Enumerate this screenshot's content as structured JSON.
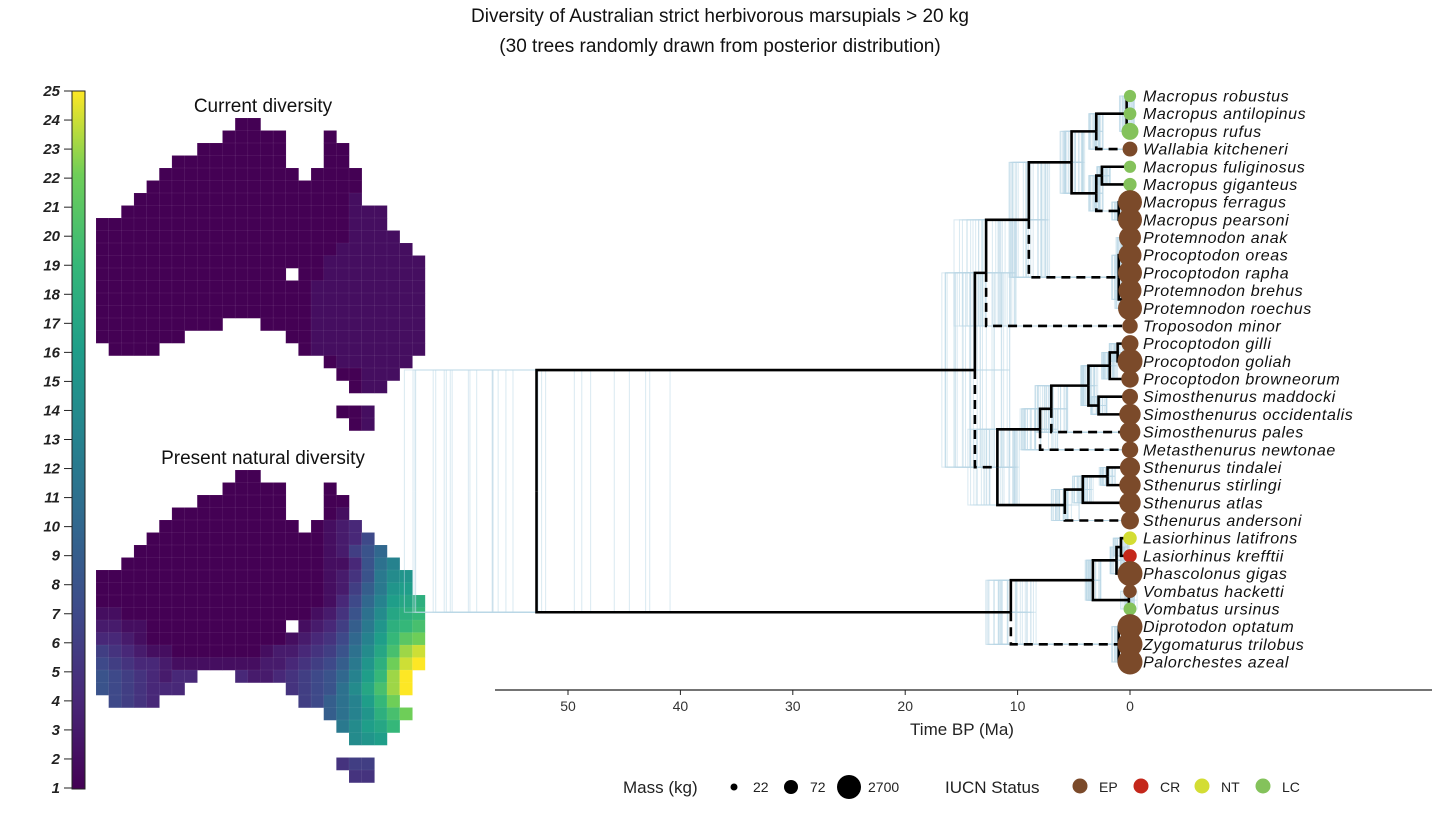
{
  "title": {
    "line1": "Diversity of Australian strict herbivorous marsupials > 20 kg",
    "line2": "(30 trees randomly drawn from posterior distribution)"
  },
  "chart_data": [
    {
      "type": "heatmap",
      "title": "Current diversity",
      "encoding": "each row string = grid row (north to south); '.' = no data; a=1 ... y=25",
      "grid": [
        "...........aa",
        "..........aaaaa...a",
        "........aaaaaaa...aa",
        "......aaaaaaaaa...aa",
        ".....aaaaaaaaaaa.aaaa",
        "....aaaaaaaaaaaaaaaaa",
        "...aaaaaaaaaaaaaaaaab",
        "..aaaaaaaaaaaaaaaaaabbb",
        "aaaaaaaaaaaaaaaaaaaabbb",
        "aaaaaaaaaaaaaaaaaaaabbbb",
        "aaaaaaaaaaaaaaaaaaabbbbbb",
        "aaaaaaaaaaaaaaaaaabbbbbbbb",
        "aaaaaaaaaaaaaaa.aabbbbbbbb",
        "aaaaaaaaaaaaaaaaabbbbbbbbb",
        "aaaaaaaaaaaaaaaaabbbbbbbbb",
        "aaaaaaaaaaaaaaaaabbbbbbbbb",
        "aaaaaaaaaa...aaaabbbbbbbbb",
        "aaaaaaa........aabbbbbbbbb",
        ".aaaa...........abbbbbbbbb",
        "..................abbbbbb",
        "...................aabbb",
        "....................abb",
        "",
        "...................aab",
        "....................ab"
      ]
    },
    {
      "type": "heatmap",
      "title": "Present natural diversity",
      "encoding": "each row string = grid row (north to south); '.' = no data; a=1 ... y=25",
      "grid": [
        "...........aa",
        "..........aaaaa...a",
        "........aaaaaaa...aa",
        "......aaaaaaaaa...ab",
        ".....aaaaaaaaaaa.abcd",
        "....aaaaaaaaaaaaaabcdg",
        "...aaaaaaaaaaaaaaabcfhj",
        "..aaaaaaaaaaaaaaaabbdhkm",
        "aaaaaaaaaaaaaaaaaabcehlno",
        "aaaaaaaaaaaaaaaaaabcfilop",
        "aaaaaaaaaaaaaaaaaabdgjmpqr",
        "bbaaaaaaaaaaaaaaabcehknqrs",
        "ccbbaaaaaaaaaaa.bcdfilorst",
        "ddcbaaaaaaaaaaabcdegjmpsuv",
        "fedcbbaaaaaaabccdefhknqtwx",
        "gfeddcbbbbbbbccdefgilorvxy",
        "hgfedcdd...dccdefghjmpswy",
        "hgfeddd........efghknqtwy",
        ".gfed...........fgikmpsv",
        "..................ikmortv",
        "...................lnpqs",
        "....................nop",
        "",
        "...................eff",
        "....................ee"
      ]
    },
    {
      "type": "phylogeny",
      "colorbar": {
        "min": 1,
        "max": 25,
        "ticks": [
          "1",
          "2",
          "3",
          "4",
          "5",
          "6",
          "7",
          "8",
          "9",
          "10",
          "11",
          "12",
          "13",
          "14",
          "15",
          "16",
          "17",
          "18",
          "19",
          "20",
          "21",
          "22",
          "23",
          "24",
          "25"
        ],
        "palette": "viridis"
      },
      "xlabel": "Time BP (Ma)",
      "x_ticks": [
        "50",
        "40",
        "30",
        "20",
        "10",
        "0"
      ],
      "xlim": [
        56,
        -27
      ],
      "n_posterior_trees": 30,
      "tips": [
        {
          "name": "Macropus robustus",
          "status": "LC",
          "mass_kg": 22
        },
        {
          "name": "Macropus antilopinus",
          "status": "LC",
          "mass_kg": 25
        },
        {
          "name": "Macropus rufus",
          "status": "LC",
          "mass_kg": 60
        },
        {
          "name": "Wallabia kitcheneri",
          "status": "EP",
          "mass_kg": 40
        },
        {
          "name": "Macropus fuliginosus",
          "status": "LC",
          "mass_kg": 22
        },
        {
          "name": "Macropus giganteus",
          "status": "LC",
          "mass_kg": 28
        },
        {
          "name": "Macropus ferragus",
          "status": "EP",
          "mass_kg": 170
        },
        {
          "name": "Macropus pearsoni",
          "status": "EP",
          "mass_kg": 170
        },
        {
          "name": "Protemnodon anak",
          "status": "EP",
          "mass_kg": 130
        },
        {
          "name": "Procoptodon oreas",
          "status": "EP",
          "mass_kg": 150
        },
        {
          "name": "Procoptodon rapha",
          "status": "EP",
          "mass_kg": 170
        },
        {
          "name": "Protemnodon brehus",
          "status": "EP",
          "mass_kg": 150
        },
        {
          "name": "Protemnodon roechus",
          "status": "EP",
          "mass_kg": 170
        },
        {
          "name": "Troposodon minor",
          "status": "EP",
          "mass_kg": 45
        },
        {
          "name": "Procoptodon gilli",
          "status": "EP",
          "mass_kg": 60
        },
        {
          "name": "Procoptodon goliah",
          "status": "EP",
          "mass_kg": 230
        },
        {
          "name": "Procoptodon browneorum",
          "status": "EP",
          "mass_kg": 65
        },
        {
          "name": "Simosthenurus maddocki",
          "status": "EP",
          "mass_kg": 50
        },
        {
          "name": "Simosthenurus occidentalis",
          "status": "EP",
          "mass_kg": 120
        },
        {
          "name": "Simosthenurus pales",
          "status": "EP",
          "mass_kg": 110
        },
        {
          "name": "Metasthenurus newtonae",
          "status": "EP",
          "mass_kg": 55
        },
        {
          "name": "Sthenurus tindalei",
          "status": "EP",
          "mass_kg": 100
        },
        {
          "name": "Sthenurus stirlingi",
          "status": "EP",
          "mass_kg": 120
        },
        {
          "name": "Sthenurus atlas",
          "status": "EP",
          "mass_kg": 120
        },
        {
          "name": "Sthenurus andersoni",
          "status": "EP",
          "mass_kg": 70
        },
        {
          "name": "Lasiorhinus latifrons",
          "status": "NT",
          "mass_kg": 30
        },
        {
          "name": "Lasiorhinus krefftii",
          "status": "CR",
          "mass_kg": 30
        },
        {
          "name": "Phascolonus gigas",
          "status": "EP",
          "mass_kg": 200
        },
        {
          "name": "Vombatus hacketti",
          "status": "EP",
          "mass_kg": 30
        },
        {
          "name": "Vombatus ursinus",
          "status": "LC",
          "mass_kg": 26
        },
        {
          "name": "Diprotodon optatum",
          "status": "EP",
          "mass_kg": 2700
        },
        {
          "name": "Zygomaturus trilobus",
          "status": "EP",
          "mass_kg": 500
        },
        {
          "name": "Palorchestes azeal",
          "status": "EP",
          "mass_kg": 1000
        }
      ],
      "tree": {
        "age": 52.8,
        "children": [
          {
            "age": 13.8,
            "children": [
              {
                "age": 12.8,
                "children": [
                  {
                    "age": 9.0,
                    "children": [
                      {
                        "age": 5.2,
                        "children": [
                          {
                            "age": 3.0,
                            "children": [
                              {
                                "age": 0.3,
                                "children": [
                                  {
                                    "tip": 0
                                  },
                                  {
                                    "tip": 1
                                  },
                                  {
                                    "tip": 2
                                  }
                                ]
                              },
                              {
                                "tip": 3,
                                "dashed": true
                              }
                            ]
                          },
                          {
                            "age": 3.0,
                            "children": [
                              {
                                "age": 2.5,
                                "children": [
                                  {
                                    "tip": 4
                                  },
                                  {
                                    "tip": 5
                                  }
                                ]
                              },
                              {
                                "age": 1.0,
                                "dashed": true,
                                "children": [
                                  {
                                    "tip": 6
                                  },
                                  {
                                    "tip": 7
                                  }
                                ]
                              }
                            ]
                          }
                        ]
                      },
                      {
                        "age": 1.0,
                        "dashed": true,
                        "children": [
                          {
                            "age": 0.5,
                            "children": [
                              {
                                "tip": 8
                              },
                              {
                                "tip": 9
                              },
                              {
                                "tip": 10
                              }
                            ]
                          },
                          {
                            "age": 0.6,
                            "children": [
                              {
                                "tip": 11
                              },
                              {
                                "tip": 12
                              }
                            ]
                          }
                        ]
                      }
                    ]
                  },
                  {
                    "tip": 13,
                    "dashed": true
                  }
                ]
              },
              {
                "age": 11.8,
                "dashed": true,
                "children": [
                  {
                    "age": 8.0,
                    "children": [
                      {
                        "age": 7.0,
                        "children": [
                          {
                            "age": 3.7,
                            "children": [
                              {
                                "age": 1.8,
                                "children": [
                                  {
                                    "age": 1.1,
                                    "children": [
                                      {
                                        "tip": 14
                                      },
                                      {
                                        "tip": 15
                                      }
                                    ]
                                  },
                                  {
                                    "tip": 16
                                  }
                                ]
                              },
                              {
                                "age": 2.8,
                                "children": [
                                  {
                                    "tip": 17
                                  },
                                  {
                                    "tip": 18
                                  }
                                ]
                              }
                            ]
                          },
                          {
                            "tip": 19,
                            "dashed": true
                          }
                        ]
                      },
                      {
                        "tip": 20,
                        "dashed": true
                      }
                    ]
                  },
                  {
                    "age": 5.8,
                    "children": [
                      {
                        "age": 4.2,
                        "children": [
                          {
                            "age": 2.0,
                            "children": [
                              {
                                "tip": 21
                              },
                              {
                                "tip": 22
                              }
                            ]
                          },
                          {
                            "tip": 23
                          }
                        ]
                      },
                      {
                        "tip": 24,
                        "dashed": true
                      }
                    ]
                  }
                ]
              }
            ]
          },
          {
            "age": 10.6,
            "children": [
              {
                "age": 3.3,
                "children": [
                  {
                    "age": 1.2,
                    "children": [
                      {
                        "age": 0.8,
                        "children": [
                          {
                            "tip": 25
                          },
                          {
                            "tip": 26
                          }
                        ]
                      },
                      {
                        "tip": 27
                      }
                    ]
                  },
                  {
                    "age": 0.1,
                    "children": [
                      {
                        "tip": 28
                      },
                      {
                        "tip": 29
                      }
                    ]
                  }
                ]
              },
              {
                "age": 1.0,
                "dashed": true,
                "children": [
                  {
                    "tip": 30
                  },
                  {
                    "tip": 31
                  },
                  {
                    "tip": 32
                  }
                ]
              }
            ]
          }
        ]
      }
    }
  ],
  "legend": {
    "mass_title": "Mass (kg)",
    "mass_items": [
      "22",
      "72",
      "2700"
    ],
    "status_title": "IUCN Status",
    "status_items": [
      {
        "label": "EP",
        "color": "#7b4a2a"
      },
      {
        "label": "CR",
        "color": "#c4271b"
      },
      {
        "label": "NT",
        "color": "#d3dd34"
      },
      {
        "label": "LC",
        "color": "#84c25b"
      }
    ]
  },
  "colors": {
    "tree": "#000000",
    "posterior_trees": "#b9d7e6",
    "map_outline": "#a0a0a0"
  }
}
